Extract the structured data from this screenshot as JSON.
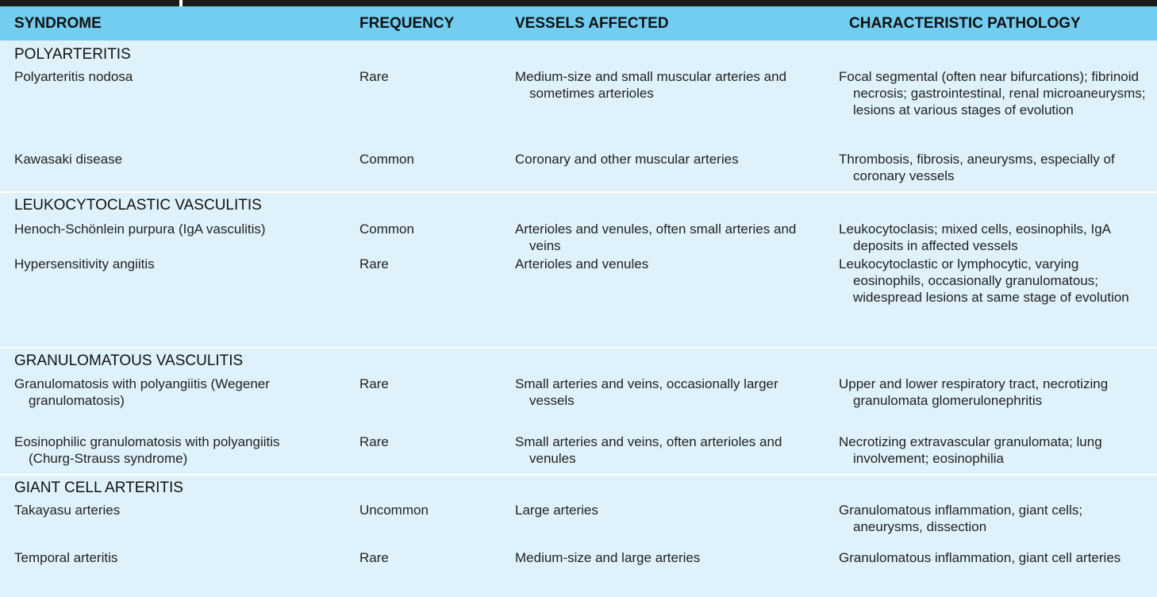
{
  "header": {
    "syndrome": "SYNDROME",
    "frequency": "FREQUENCY",
    "vessels": "VESSELS AFFECTED",
    "pathology": "CHARACTERISTIC PATHOLOGY"
  },
  "sections": [
    {
      "title": "POLYARTERITIS",
      "rows": [
        {
          "syndrome": "Polyarteritis nodosa",
          "frequency": "Rare",
          "vessels": "Medium-size and small muscular arteries and sometimes arterioles",
          "pathology": "Focal segmental (often near bifurcations); fibrinoid necrosis; gastrointestinal, renal microaneurysms; lesions at various stages of evolution"
        },
        {
          "syndrome": "Kawasaki disease",
          "frequency": "Common",
          "vessels": "Coronary and other muscular arteries",
          "pathology": "Thrombosis, fibrosis, aneurysms, especially of coronary vessels"
        }
      ]
    },
    {
      "title": "LEUKOCYTOCLASTIC VASCULITIS",
      "rows": [
        {
          "syndrome": "Henoch-Schönlein purpura (IgA vasculitis)",
          "frequency": "Common",
          "vessels": "Arterioles and venules, often small arteries and veins",
          "pathology": "Leukocytoclasis; mixed cells, eosinophils, IgA deposits in affected vessels"
        },
        {
          "syndrome": "Hypersensitivity angiitis",
          "frequency": "Rare",
          "vessels": "Arterioles and venules",
          "pathology": "Leukocytoclastic or lymphocytic, varying eosinophils, occasionally granulomatous; widespread lesions at same stage of evolution"
        }
      ]
    },
    {
      "title": "GRANULOMATOUS VASCULITIS",
      "rows": [
        {
          "syndrome": "Granulomatosis with polyangiitis (Wegener granulomatosis)",
          "frequency": "Rare",
          "vessels": "Small arteries and veins, occasionally larger vessels",
          "pathology": "Upper and lower respiratory tract, necrotizing granulomata glomerulonephritis"
        },
        {
          "syndrome": "Eosinophilic granulomatosis with polyangiitis (Churg-Strauss syndrome)",
          "frequency": "Rare",
          "vessels": "Small arteries and veins, often arterioles and venules",
          "pathology": "Necrotizing extravascular granulomata; lung involvement; eosinophilia"
        }
      ]
    },
    {
      "title": "GIANT CELL ARTERITIS",
      "rows": [
        {
          "syndrome": "Takayasu arteries",
          "frequency": "Uncommon",
          "vessels": "Large arteries",
          "pathology": "Granulomatous inflammation, giant cells; aneurysms, dissection"
        },
        {
          "syndrome": "Temporal arteritis",
          "frequency": "Rare",
          "vessels": "Medium-size and large arteries",
          "pathology": "Granulomatous inflammation, giant cell arteries"
        }
      ]
    }
  ],
  "colors": {
    "header_bg": "#72cdf0",
    "body_bg": "#dff2fb",
    "divider": "#ffffff"
  }
}
